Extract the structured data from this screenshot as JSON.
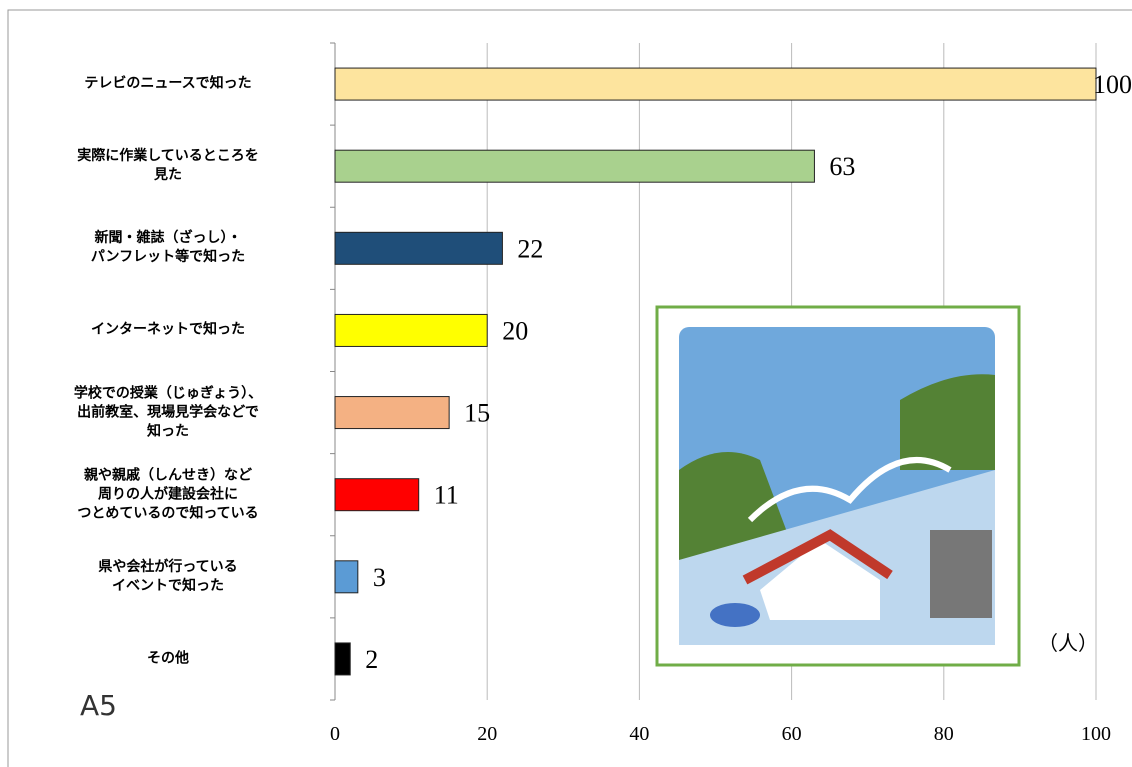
{
  "chart_data": {
    "type": "bar",
    "orientation": "horizontal",
    "categories": [
      "テレビのニュースで知った",
      "実際に作業しているところを\n見た",
      "新聞・雑誌（ざっし）・\nパンフレット等で知った",
      "インターネットで知った",
      "学校での授業（じゅぎょう）、\n出前教室、現場見学会などで\n知った",
      "親や親戚（しんせき）など\n周りの人が建設会社に\nつとめているので知っている",
      "県や会社が行っている\nイベントで知った",
      "その他"
    ],
    "values": [
      100,
      63,
      22,
      20,
      15,
      11,
      3,
      2
    ],
    "colors": [
      "#fde49e",
      "#a9d18e",
      "#1f4e79",
      "#ffff00",
      "#f4b183",
      "#ff0000",
      "#5b9bd5",
      "#000000"
    ],
    "xlim": [
      0,
      100
    ],
    "xticks": [
      0,
      20,
      40,
      60,
      80,
      100
    ],
    "grid": true,
    "unit_label": "（人）",
    "annotation": "A5"
  }
}
